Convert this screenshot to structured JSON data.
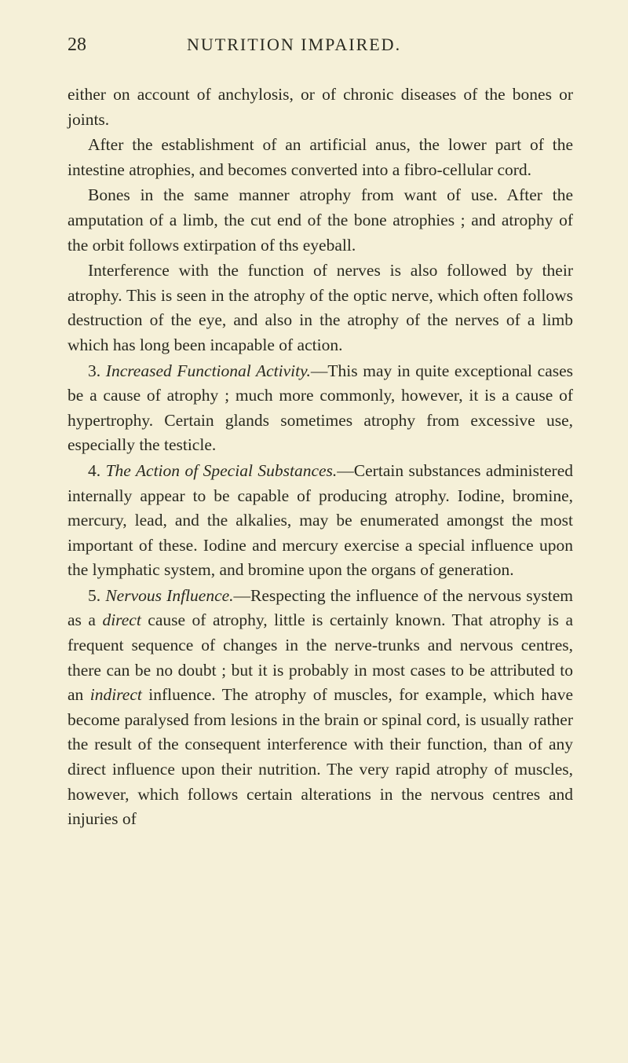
{
  "page": {
    "number": "28",
    "title": "NUTRITION IMPAIRED.",
    "background_color": "#f5f0d8",
    "text_color": "#2a2a20",
    "body_fontsize": 21.5,
    "header_fontsize": 22,
    "pagenum_fontsize": 24,
    "line_height": 1.47
  },
  "paragraphs": {
    "p1": "either on account of anchylosis, or of chronic diseases of the bones or joints.",
    "p2": "After the establishment of an artificial anus, the lower part of the intestine atrophies, and becomes converted into a fibro-cellular cord.",
    "p3": "Bones in the same manner atrophy from want of use. After the amputation of a limb, the cut end of the bone atrophies ; and atrophy of the orbit follows extirpation of ths eyeball.",
    "p4": "Interference with the function of nerves is also followed by their atrophy. This is seen in the atrophy of the optic nerve, which often follows destruction of the eye, and also in the atrophy of the nerves of a limb which has long been incapable of action.",
    "p5_pre": "3. ",
    "p5_italic": "Increased Functional Activity.",
    "p5_post": "—This may in quite exceptional cases be a cause of atrophy ; much more commonly, however, it is a cause of hypertrophy. Certain glands sometimes atrophy from excessive use, especially the testicle.",
    "p6_pre": "4. ",
    "p6_italic": "The Action of Special Substances.",
    "p6_post": "—Certain substances administered internally appear to be capable of producing atrophy. Iodine, bromine, mercury, lead, and the alkalies, may be enumerated amongst the most important of these. Iodine and mercury exercise a special influence upon the lymphatic system, and bromine upon the organs of generation.",
    "p7_pre": "5. ",
    "p7_italic": "Nervous Influence.",
    "p7_mid1": "—Respecting the influence of the nervous system as a ",
    "p7_italic2": "direct",
    "p7_mid2": " cause of atrophy, little is certainly known. That atrophy is a frequent sequence of changes in the nerve-trunks and nervous centres, there can be no doubt ; but it is probably in most cases to be attributed to an ",
    "p7_italic3": "indirect",
    "p7_post": " influence. The atrophy of muscles, for example, which have become paralysed from lesions in the brain or spinal cord, is usually rather the result of the consequent interference with their function, than of any direct influence upon their nutrition. The very rapid atrophy of muscles, however, which follows certain alterations in the nervous centres and injuries of"
  }
}
